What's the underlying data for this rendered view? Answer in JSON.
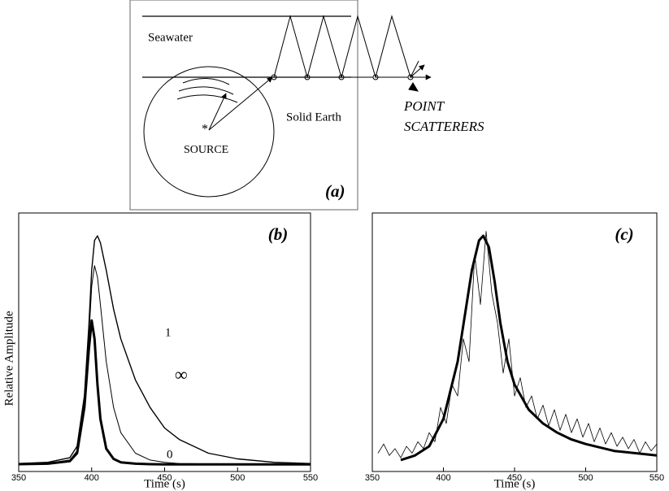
{
  "diagram": {
    "water": "Seawater",
    "earth": "Solid Earth",
    "source": "SOURCE",
    "scatterers_1": "POINT",
    "scatterers_2": "SCATTERERS",
    "panel": "(a)"
  },
  "chart_data": [
    {
      "type": "line",
      "annotation": "(b)",
      "xlabel": "Time (s)",
      "ylabel": "Relative Amplitude",
      "xlim": [
        350,
        550
      ],
      "xticks": [
        350,
        400,
        450,
        500,
        550
      ],
      "ylim": [
        -0.03,
        1.1
      ],
      "x": [
        350,
        370,
        385,
        390,
        395,
        398,
        400,
        402,
        404,
        406,
        410,
        415,
        420,
        430,
        440,
        450,
        460,
        480,
        500,
        525,
        550
      ],
      "series": [
        {
          "name": "∞",
          "color": "#000000",
          "linewidth": 1.4,
          "values": [
            0.005,
            0.01,
            0.03,
            0.08,
            0.3,
            0.6,
            0.85,
            0.98,
            1.0,
            0.97,
            0.85,
            0.68,
            0.55,
            0.37,
            0.25,
            0.16,
            0.11,
            0.05,
            0.025,
            0.01,
            0.005
          ]
        },
        {
          "name": "1",
          "color": "#000000",
          "linewidth": 1,
          "values": [
            0.003,
            0.006,
            0.02,
            0.06,
            0.25,
            0.55,
            0.78,
            0.87,
            0.82,
            0.7,
            0.45,
            0.25,
            0.14,
            0.05,
            0.02,
            0.01,
            0.005,
            0.003,
            0.002,
            0.001,
            0.001
          ]
        },
        {
          "name": "0",
          "color": "#000000",
          "linewidth": 3,
          "values": [
            0.002,
            0.004,
            0.015,
            0.05,
            0.25,
            0.5,
            0.63,
            0.55,
            0.35,
            0.2,
            0.07,
            0.025,
            0.01,
            0.004,
            0.002,
            0.001,
            0.001,
            0.001,
            0.001,
            0.001,
            0.001
          ]
        }
      ]
    },
    {
      "type": "line",
      "annotation": "(c)",
      "xlabel": "Time (s)",
      "xlim": [
        350,
        550
      ],
      "xticks": [
        350,
        400,
        450,
        500,
        550
      ],
      "ylim": [
        -0.03,
        1.1
      ],
      "series": [
        {
          "color": "#000000",
          "linewidth": 0.8,
          "x": [
            354,
            358,
            362,
            366,
            370,
            374,
            378,
            382,
            386,
            390,
            394,
            398,
            402,
            406,
            410,
            414,
            418,
            422,
            426,
            430,
            434,
            438,
            442,
            446,
            450,
            454,
            458,
            462,
            466,
            470,
            474,
            478,
            482,
            486,
            490,
            494,
            498,
            502,
            506,
            510,
            514,
            518,
            522,
            526,
            530,
            534,
            538,
            542,
            546,
            550
          ],
          "values": [
            0.05,
            0.09,
            0.04,
            0.07,
            0.03,
            0.08,
            0.05,
            0.1,
            0.07,
            0.14,
            0.1,
            0.25,
            0.18,
            0.35,
            0.3,
            0.55,
            0.45,
            0.92,
            0.7,
            1.02,
            0.75,
            0.62,
            0.4,
            0.55,
            0.3,
            0.38,
            0.25,
            0.3,
            0.2,
            0.26,
            0.17,
            0.24,
            0.15,
            0.22,
            0.14,
            0.2,
            0.12,
            0.18,
            0.1,
            0.16,
            0.09,
            0.14,
            0.08,
            0.12,
            0.07,
            0.11,
            0.05,
            0.1,
            0.06,
            0.09
          ]
        },
        {
          "color": "#000000",
          "linewidth": 3,
          "x": [
            370,
            380,
            390,
            400,
            410,
            420,
            425,
            428,
            432,
            436,
            440,
            445,
            450,
            460,
            470,
            480,
            490,
            500,
            520,
            550
          ],
          "values": [
            0.02,
            0.04,
            0.08,
            0.2,
            0.45,
            0.85,
            0.98,
            1.0,
            0.95,
            0.8,
            0.62,
            0.45,
            0.35,
            0.24,
            0.18,
            0.14,
            0.11,
            0.09,
            0.06,
            0.04
          ]
        }
      ]
    }
  ]
}
